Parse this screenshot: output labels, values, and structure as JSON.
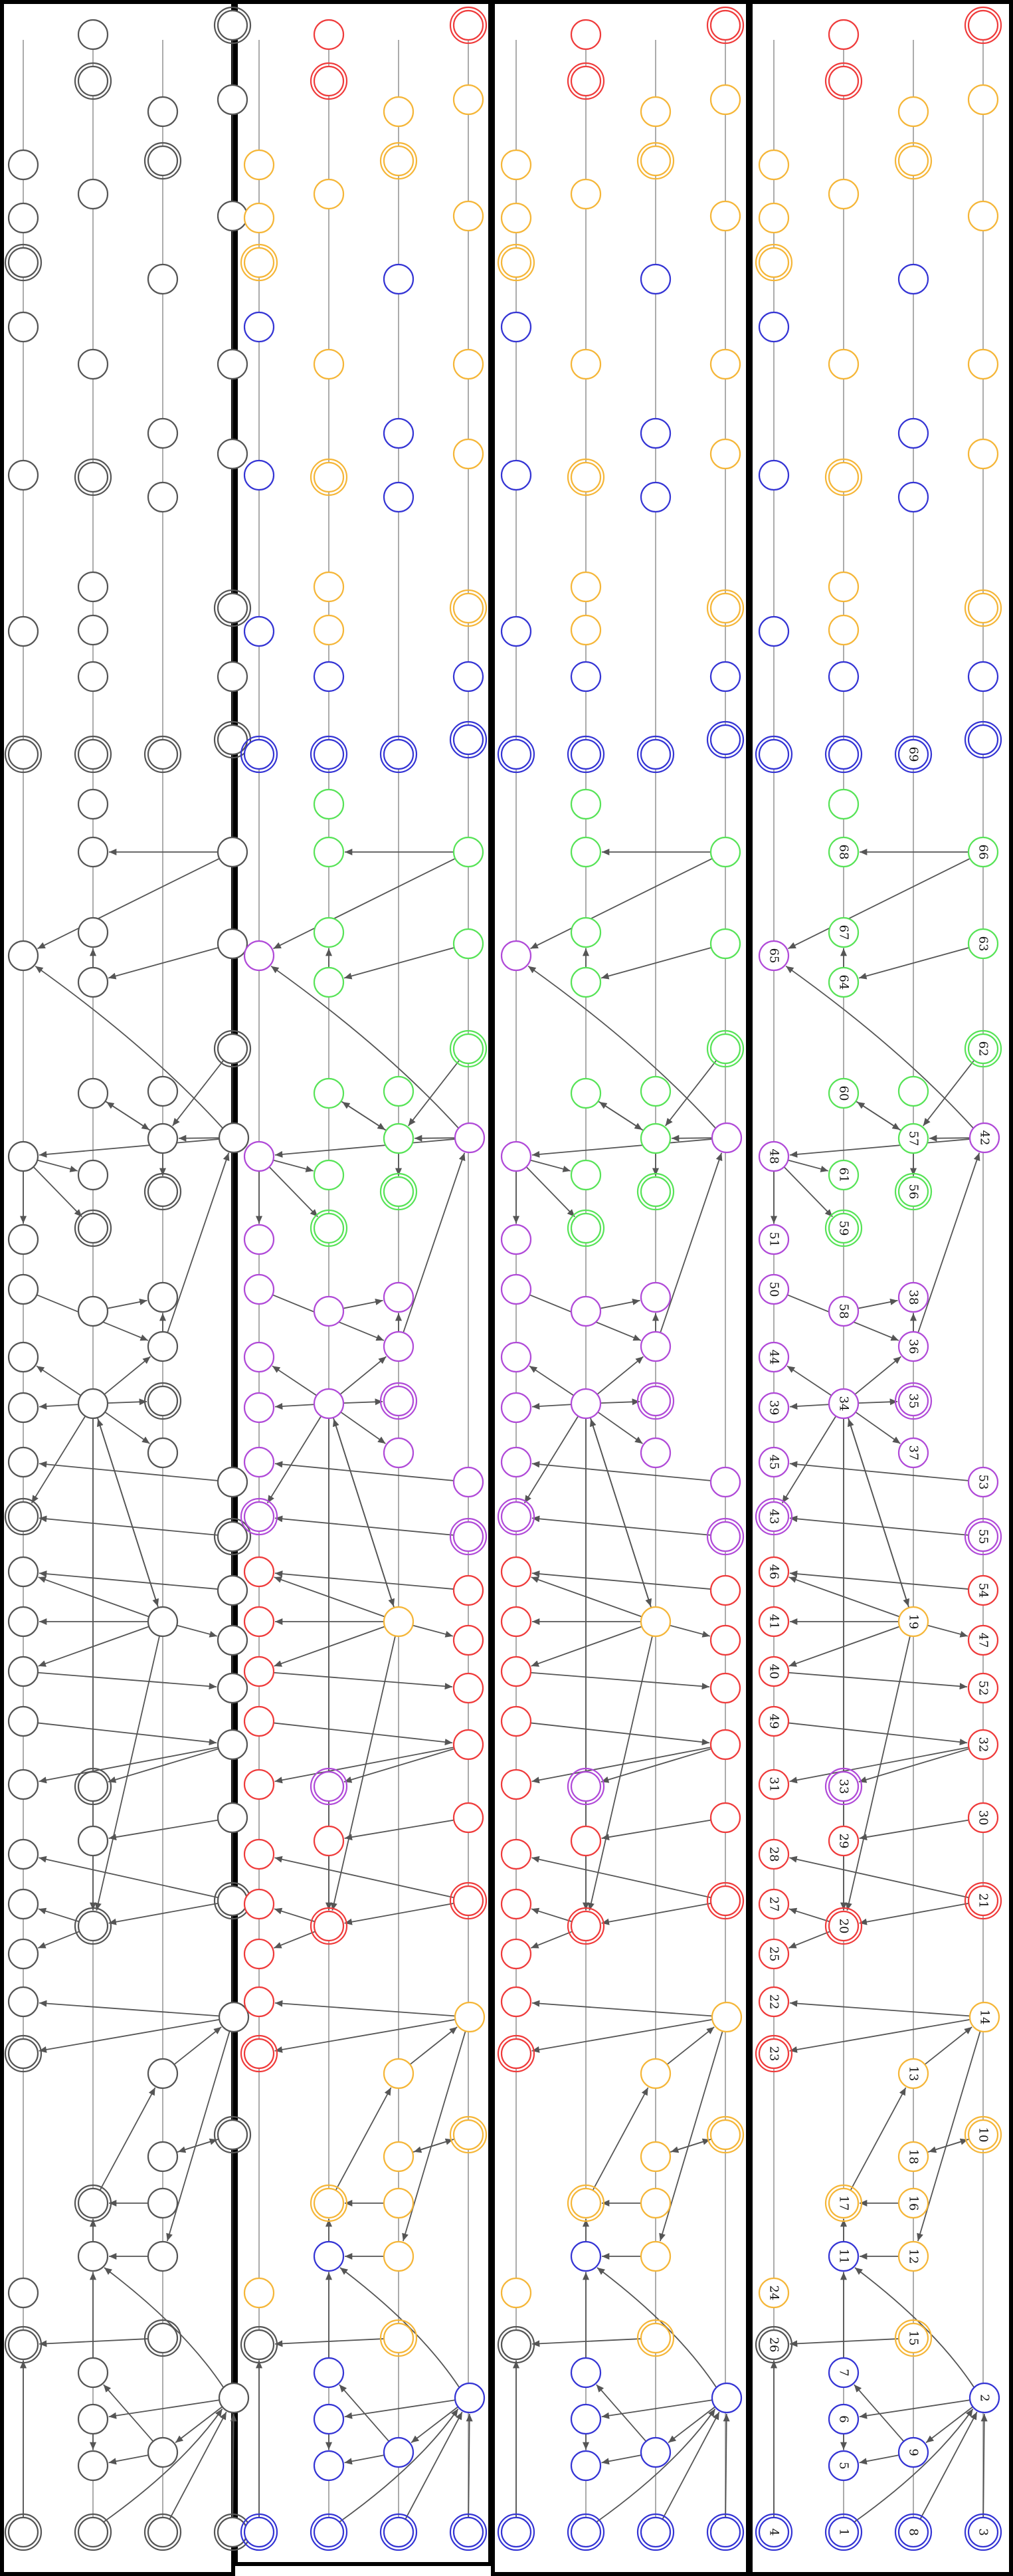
{
  "colors": {
    "plain": "#555555",
    "red": "#ef3b3b",
    "orange": "#f5b638",
    "blue": "#3434d4",
    "green": "#57e357",
    "purple": "#b04ad8",
    "filled": "#d0d0d0",
    "filled_dark": "#6a6a6a"
  },
  "labels": {
    "4": "4",
    "1": "1",
    "8": "8",
    "3": "3",
    "26": "26",
    "15": "15",
    "2": "2",
    "24": "24",
    "7": "7",
    "6": "6",
    "9": "9",
    "5": "5",
    "11": "11",
    "12": "12",
    "17": "17",
    "16": "16",
    "18": "18",
    "10": "10",
    "13": "13",
    "14": "14",
    "23": "23",
    "22": "22",
    "25": "25",
    "27": "27",
    "20": "20",
    "21": "21",
    "28": "28",
    "29": "29",
    "30": "30",
    "31": "31",
    "33": "33",
    "32": "32",
    "49": "49",
    "40": "40",
    "52": "52",
    "41": "41",
    "19": "19",
    "47": "47",
    "46": "46",
    "54": "54",
    "43": "43",
    "55": "55",
    "45": "45",
    "53": "53",
    "39": "39",
    "34": "34",
    "35": "35",
    "37": "37",
    "44": "44",
    "36": "36",
    "38": "38",
    "58": "58",
    "50": "50",
    "51": "51",
    "59": "59",
    "56": "56",
    "48": "48",
    "61": "61",
    "57": "57",
    "42": "42",
    "60": "60",
    "62": "62",
    "64": "64",
    "63": "63",
    "67": "67",
    "65": "65",
    "68": "68",
    "66": "66",
    "69": "69"
  }
}
